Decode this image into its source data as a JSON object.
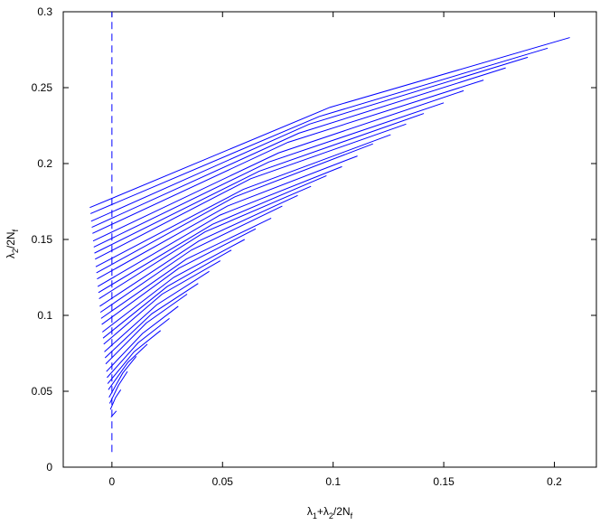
{
  "chart_data": {
    "type": "line",
    "xlabel": {
      "parts": [
        "λ",
        "1",
        "+λ",
        "2",
        "/2N",
        "f"
      ],
      "sub": [
        false,
        true,
        false,
        true,
        false,
        true
      ]
    },
    "ylabel": {
      "parts": [
        "λ",
        "2",
        "/2N",
        "f"
      ],
      "sub": [
        false,
        true,
        false,
        true
      ]
    },
    "xlim": [
      -0.022,
      0.219
    ],
    "ylim": [
      0,
      0.3
    ],
    "xticks": [
      0,
      0.05,
      0.1,
      0.15,
      0.2
    ],
    "yticks": [
      0,
      0.05,
      0.1,
      0.15,
      0.2,
      0.25,
      0.3
    ],
    "color": "#0000ff",
    "reference_line": {
      "x": 0,
      "y": [
        0.01,
        0.3
      ],
      "style": "dashed"
    },
    "series": [
      {
        "x": [
          -0.01,
          0.0985,
          0.207
        ],
        "values": [
          0.171,
          0.237,
          0.283
        ]
      },
      {
        "x": [
          -0.0097,
          0.0937,
          0.197
        ],
        "values": [
          0.167,
          0.231,
          0.276
        ]
      },
      {
        "x": [
          -0.0094,
          0.0893,
          0.188
        ],
        "values": [
          0.162,
          0.226,
          0.27
        ]
      },
      {
        "x": [
          -0.0091,
          0.0845,
          0.178
        ],
        "values": [
          0.158,
          0.22,
          0.263
        ]
      },
      {
        "x": [
          -0.0088,
          0.0796,
          0.168
        ],
        "values": [
          0.154,
          0.214,
          0.255
        ]
      },
      {
        "x": [
          -0.0085,
          0.0753,
          0.159
        ],
        "values": [
          0.149,
          0.207,
          0.248
        ]
      },
      {
        "x": [
          -0.0082,
          0.0709,
          0.15
        ],
        "values": [
          0.145,
          0.201,
          0.24
        ]
      },
      {
        "x": [
          -0.0079,
          0.0666,
          0.141
        ],
        "values": [
          0.141,
          0.195,
          0.233
        ]
      },
      {
        "x": [
          -0.0076,
          0.0627,
          0.133
        ],
        "values": [
          0.137,
          0.19,
          0.226
        ]
      },
      {
        "x": [
          -0.0073,
          0.0594,
          0.126
        ],
        "values": [
          0.132,
          0.183,
          0.219
        ]
      },
      {
        "x": [
          -0.007,
          0.0555,
          0.118
        ],
        "values": [
          0.128,
          0.178,
          0.213
        ]
      },
      {
        "x": [
          -0.0067,
          0.0522,
          0.111
        ],
        "values": [
          0.124,
          0.172,
          0.205
        ]
      },
      {
        "x": [
          -0.0064,
          0.0488,
          0.104
        ],
        "values": [
          0.119,
          0.166,
          0.198
        ]
      },
      {
        "x": [
          -0.0061,
          0.0455,
          0.097
        ],
        "values": [
          0.115,
          0.16,
          0.192
        ]
      },
      {
        "x": [
          -0.0058,
          0.0421,
          0.09
        ],
        "values": [
          0.111,
          0.155,
          0.185
        ]
      },
      {
        "x": [
          -0.0055,
          0.0393,
          0.084
        ],
        "values": [
          0.106,
          0.149,
          0.179
        ]
      },
      {
        "x": [
          -0.0052,
          0.0359,
          0.077
        ],
        "values": [
          0.102,
          0.143,
          0.172
        ]
      },
      {
        "x": [
          -0.0049,
          0.0336,
          0.072
        ],
        "values": [
          0.098,
          0.137,
          0.164
        ]
      },
      {
        "x": [
          -0.0046,
          0.0302,
          0.065
        ],
        "values": [
          0.094,
          0.131,
          0.157
        ]
      },
      {
        "x": [
          -0.0043,
          0.0279,
          0.06
        ],
        "values": [
          0.089,
          0.125,
          0.15
        ]
      },
      {
        "x": [
          -0.004,
          0.025,
          0.054
        ],
        "values": [
          0.085,
          0.119,
          0.143
        ]
      },
      {
        "x": [
          -0.0037,
          0.0227,
          0.049
        ],
        "values": [
          0.081,
          0.114,
          0.136
        ]
      },
      {
        "x": [
          -0.0034,
          0.0203,
          0.044
        ],
        "values": [
          0.076,
          0.107,
          0.129
        ]
      },
      {
        "x": [
          -0.0031,
          0.018,
          0.039
        ],
        "values": [
          0.072,
          0.101,
          0.121
        ]
      },
      {
        "x": [
          -0.0028,
          0.0156,
          0.034
        ],
        "values": [
          0.068,
          0.095,
          0.114
        ]
      },
      {
        "x": [
          -0.0025,
          0.0138,
          0.03
        ],
        "values": [
          0.063,
          0.088,
          0.106
        ]
      },
      {
        "x": [
          -0.0022,
          0.0119,
          0.026
        ],
        "values": [
          0.059,
          0.082,
          0.098
        ]
      },
      {
        "x": [
          -0.0019,
          0.01,
          0.022
        ],
        "values": [
          0.055,
          0.076,
          0.09
        ]
      },
      {
        "x": [
          -0.0016,
          0.0072,
          0.016
        ],
        "values": [
          0.051,
          0.069,
          0.081
        ]
      },
      {
        "x": [
          -0.0013,
          0.0049,
          0.011
        ],
        "values": [
          0.046,
          0.062,
          0.073
        ]
      },
      {
        "x": [
          -0.001,
          0.003,
          0.007
        ],
        "values": [
          0.042,
          0.054,
          0.063
        ]
      },
      {
        "x": [
          -0.0007,
          0.0017,
          0.004
        ],
        "values": [
          0.038,
          0.046,
          0.051
        ]
      },
      {
        "x": [
          -0.0004,
          0.0008,
          0.002
        ],
        "values": [
          0.033,
          0.035,
          0.037
        ]
      }
    ]
  }
}
